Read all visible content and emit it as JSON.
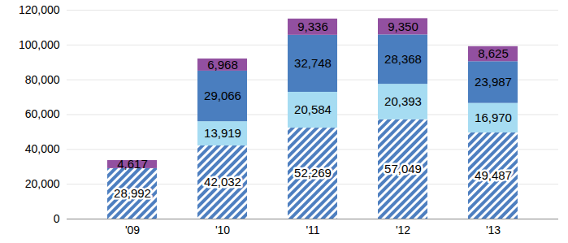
{
  "chart_data": {
    "type": "bar",
    "stacked": true,
    "data_labels": true,
    "grid": true,
    "categories": [
      "'09",
      "'10",
      "'11",
      "'12",
      "'13"
    ],
    "ylim": [
      0,
      120000
    ],
    "yticks": [
      0,
      {
        "value": 20000,
        "label": "20,000"
      },
      {
        "value": 40000,
        "label": "40,000"
      },
      {
        "value": 60000,
        "label": "60,000"
      },
      {
        "value": 80000,
        "label": "80,000"
      },
      {
        "value": 100000,
        "label": "100,000"
      },
      {
        "value": 120000,
        "label": "120,000"
      }
    ],
    "series": [
      {
        "color": "#4e7fc0",
        "values": [
          28992,
          42032,
          52269,
          57049,
          49487
        ],
        "value_labels": [
          "28,992",
          "42,032",
          "52,269",
          "57,049",
          "49,487"
        ]
      },
      {
        "color": "#a6dcf2",
        "values": [
          null,
          13919,
          20584,
          20393,
          16970
        ],
        "value_labels": [
          null,
          "13,919",
          "20,584",
          "20,393",
          "16,970"
        ]
      },
      {
        "color": "#4a7ebf",
        "values": [
          null,
          29066,
          32748,
          28368,
          23987
        ],
        "value_labels": [
          null,
          "29,066",
          "32,748",
          "28,368",
          "23,987"
        ]
      },
      {
        "color": "#9250a0",
        "values": [
          4617,
          6968,
          9336,
          9350,
          8625
        ],
        "value_labels": [
          "4,617",
          "6,968",
          "9,336",
          "9,350",
          "8,625"
        ]
      }
    ]
  }
}
